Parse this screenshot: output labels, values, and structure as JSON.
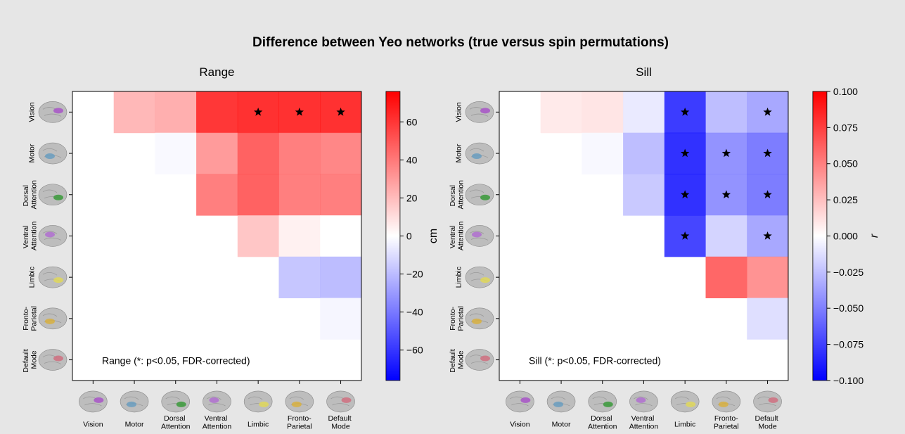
{
  "chart_data": [
    {
      "type": "heatmap",
      "suptitle": "Difference between Yeo networks (true versus spin permutations)",
      "title": "Range",
      "categories": [
        "Vision",
        "Motor",
        "Dorsal Attention",
        "Ventral Attention",
        "Limbic",
        "Fronto-Parietal",
        "Default Mode"
      ],
      "matrix": [
        [
          null,
          25,
          28,
          70,
          72,
          72,
          72
        ],
        [
          null,
          null,
          -2,
          35,
          55,
          45,
          42
        ],
        [
          null,
          null,
          null,
          45,
          55,
          45,
          45
        ],
        [
          null,
          null,
          null,
          null,
          20,
          5,
          0
        ],
        [
          null,
          null,
          null,
          null,
          null,
          -20,
          -23
        ],
        [
          null,
          null,
          null,
          null,
          null,
          null,
          -3
        ],
        [
          null,
          null,
          null,
          null,
          null,
          null,
          null
        ]
      ],
      "significant": [
        [
          0,
          4
        ],
        [
          0,
          5
        ],
        [
          0,
          6
        ]
      ],
      "annotation": "Range (*: p<0.05, FDR-corrected)",
      "colorbar_label": "cm",
      "ylim": [
        -76,
        76
      ],
      "yticks": [
        {
          "value": -60,
          "label": "−60"
        },
        {
          "value": -40,
          "label": "−40"
        },
        {
          "value": -20,
          "label": "−20"
        },
        0,
        20,
        40,
        60
      ]
    },
    {
      "type": "heatmap",
      "title": "Sill",
      "categories": [
        "Vision",
        "Motor",
        "Dorsal Attention",
        "Ventral Attention",
        "Limbic",
        "Fronto-Parietal",
        "Default Mode"
      ],
      "matrix": [
        [
          null,
          0.01,
          0.012,
          -0.01,
          -0.09,
          -0.03,
          -0.04
        ],
        [
          null,
          null,
          -0.003,
          -0.03,
          -0.095,
          -0.05,
          -0.06
        ],
        [
          null,
          null,
          null,
          -0.025,
          -0.095,
          -0.05,
          -0.06
        ],
        [
          null,
          null,
          null,
          null,
          -0.085,
          -0.02,
          -0.04
        ],
        [
          null,
          null,
          null,
          null,
          null,
          0.07,
          0.05
        ],
        [
          null,
          null,
          null,
          null,
          null,
          null,
          -0.015
        ],
        [
          null,
          null,
          null,
          null,
          null,
          null,
          null
        ]
      ],
      "significant": [
        [
          0,
          4
        ],
        [
          0,
          6
        ],
        [
          1,
          4
        ],
        [
          1,
          5
        ],
        [
          1,
          6
        ],
        [
          2,
          4
        ],
        [
          2,
          5
        ],
        [
          2,
          6
        ],
        [
          3,
          4
        ],
        [
          3,
          6
        ]
      ],
      "annotation": "Sill (*: p<0.05, FDR-corrected)",
      "colorbar_label": "r",
      "ylim": [
        -0.1,
        0.1
      ],
      "yticks": [
        {
          "value": -0.1,
          "label": "−0.100"
        },
        {
          "value": -0.075,
          "label": "−0.075"
        },
        {
          "value": -0.05,
          "label": "−0.050"
        },
        {
          "value": -0.025,
          "label": "−0.025"
        },
        {
          "value": 0,
          "label": "0.000"
        },
        0.025,
        {
          "value": 0.05,
          "label": "0.050"
        },
        0.075,
        {
          "value": 0.1,
          "label": "0.100"
        }
      ]
    }
  ]
}
